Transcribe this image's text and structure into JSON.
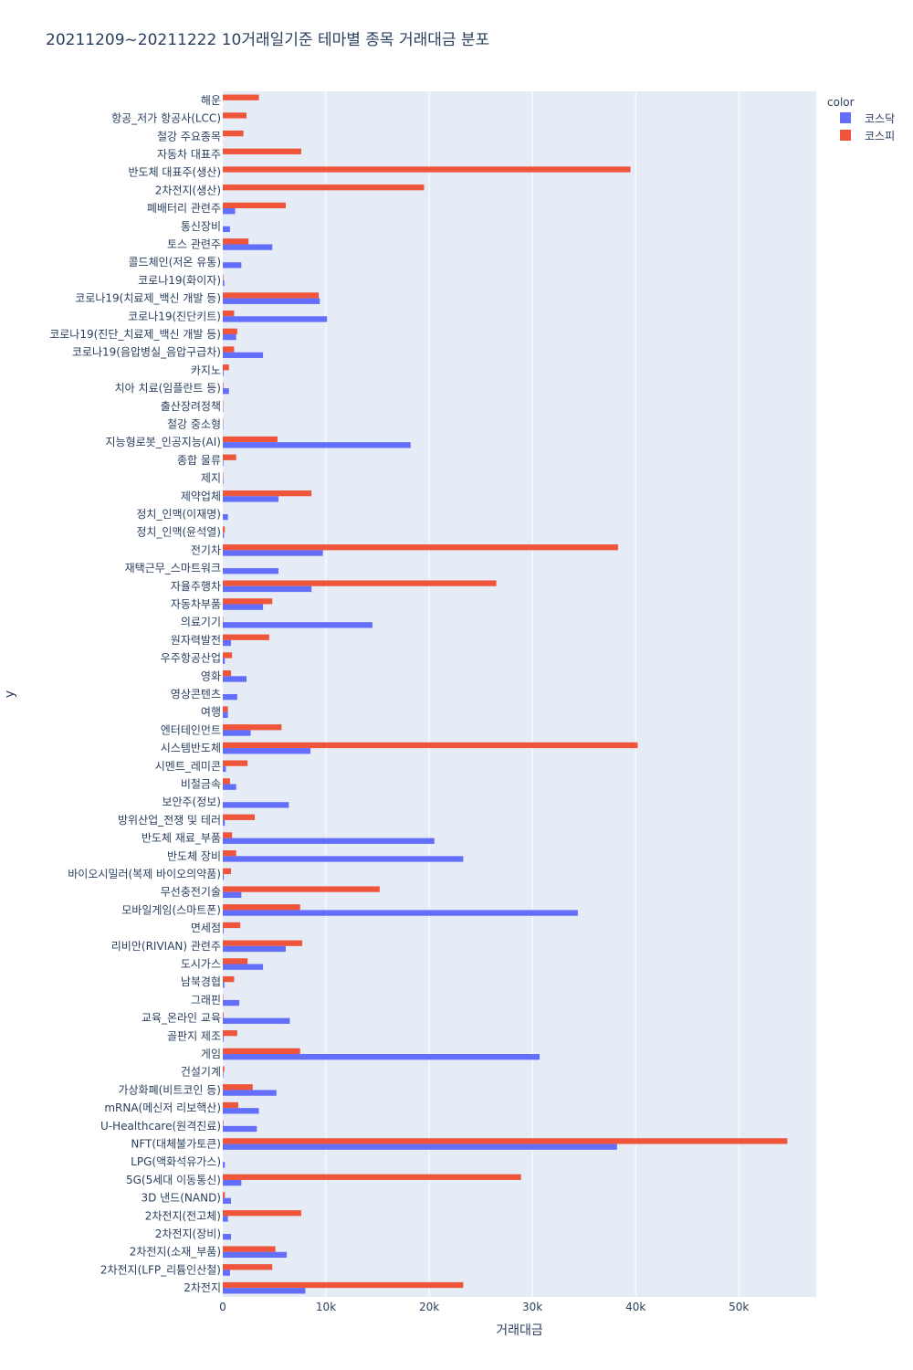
{
  "chart_data": {
    "type": "bar",
    "orientation": "horizontal",
    "barmode": "group",
    "title": "20211209~20211222 10거래일기준 테마별 종목 거래대금 분포",
    "xlabel": "거래대금",
    "ylabel": "y",
    "xlim": [
      0,
      57500
    ],
    "xticks": [
      0,
      10000,
      20000,
      30000,
      40000,
      50000
    ],
    "xtick_labels": [
      "0",
      "10k",
      "20k",
      "30k",
      "40k",
      "50k"
    ],
    "legend_title": "color",
    "legend_position": "top-right",
    "grid": true,
    "series": [
      {
        "name": "코스닥",
        "color": "#636efa"
      },
      {
        "name": "코스피",
        "color": "#ef553b"
      }
    ],
    "categories": [
      "해운",
      "항공_저가 항공사(LCC)",
      "철강 주요종목",
      "자동차 대표주",
      "반도체 대표주(생산)",
      "2차전지(생산)",
      "폐배터리 관련주",
      "통신장비",
      "토스 관련주",
      "콜드체인(저온 유통)",
      "코로나19(화이자)",
      "코로나19(치료제_백신 개발 등)",
      "코로나19(진단키트)",
      "코로나19(진단_치료제_백신 개발 등)",
      "코로나19(음압병실_음압구급차)",
      "카지노",
      "치아 치료(임플란트 등)",
      "출산장려정책",
      "철강 중소형",
      "지능형로봇_인공지능(AI)",
      "종합 물류",
      "제지",
      "제약업체",
      "정치_인맥(이재명)",
      "정치_인맥(윤석열)",
      "전기차",
      "재택근무_스마트워크",
      "자율주행차",
      "자동차부품",
      "의료기기",
      "원자력발전",
      "우주항공산업",
      "영화",
      "영상콘텐츠",
      "여행",
      "엔터테인먼트",
      "시스템반도체",
      "시멘트_레미콘",
      "비철금속",
      "보안주(정보)",
      "방위산업_전쟁 및 테러",
      "반도체 재료_부품",
      "반도체 장비",
      "바이오시밀러(복제 바이오의약품)",
      "무선충전기술",
      "모바일게임(스마트폰)",
      "면세점",
      "리비안(RIVIAN) 관련주",
      "도시가스",
      "남북경협",
      "그래핀",
      "교육_온라인 교육",
      "골판지 제조",
      "게임",
      "건설기계",
      "가상화폐(비트코인 등)",
      "mRNA(메신저 리보핵산)",
      "U-Healthcare(원격진료)",
      "NFT(대체불가토큰)",
      "LPG(액화석유가스)",
      "5G(5세대 이동통신)",
      "3D 낸드(NAND)",
      "2차전지(전고체)",
      "2차전지(장비)",
      "2차전지(소재_부품)",
      "2차전지(LFP_리튬인산철)",
      "2차전지"
    ],
    "kosdaq": [
      0,
      0,
      0,
      0,
      0,
      0,
      1200,
      700,
      4800,
      1800,
      150,
      9400,
      10100,
      1300,
      3900,
      80,
      600,
      40,
      40,
      18200,
      60,
      60,
      5400,
      500,
      120,
      9700,
      5400,
      8600,
      3900,
      14500,
      800,
      200,
      2300,
      1400,
      500,
      2700,
      8500,
      300,
      1300,
      6400,
      200,
      20500,
      23300,
      100,
      1800,
      34400,
      80,
      6100,
      3900,
      150,
      1600,
      6500,
      80,
      30700,
      60,
      5200,
      3500,
      3300,
      38200,
      200,
      1800,
      800,
      500,
      800,
      6200,
      700,
      8000
    ],
    "kospi": [
      3500,
      2300,
      2000,
      7600,
      39500,
      19500,
      6100,
      0,
      2500,
      0,
      60,
      9300,
      1100,
      1400,
      1100,
      600,
      60,
      40,
      40,
      5300,
      1300,
      40,
      8600,
      0,
      200,
      38300,
      0,
      26500,
      4800,
      40,
      4500,
      900,
      800,
      0,
      500,
      5700,
      40200,
      2400,
      700,
      0,
      3100,
      900,
      1300,
      800,
      15200,
      7500,
      1700,
      7700,
      2400,
      1100,
      40,
      80,
      1400,
      7500,
      150,
      2900,
      1500,
      60,
      54700,
      0,
      28900,
      200,
      7600,
      0,
      5100,
      4800,
      23300
    ]
  }
}
